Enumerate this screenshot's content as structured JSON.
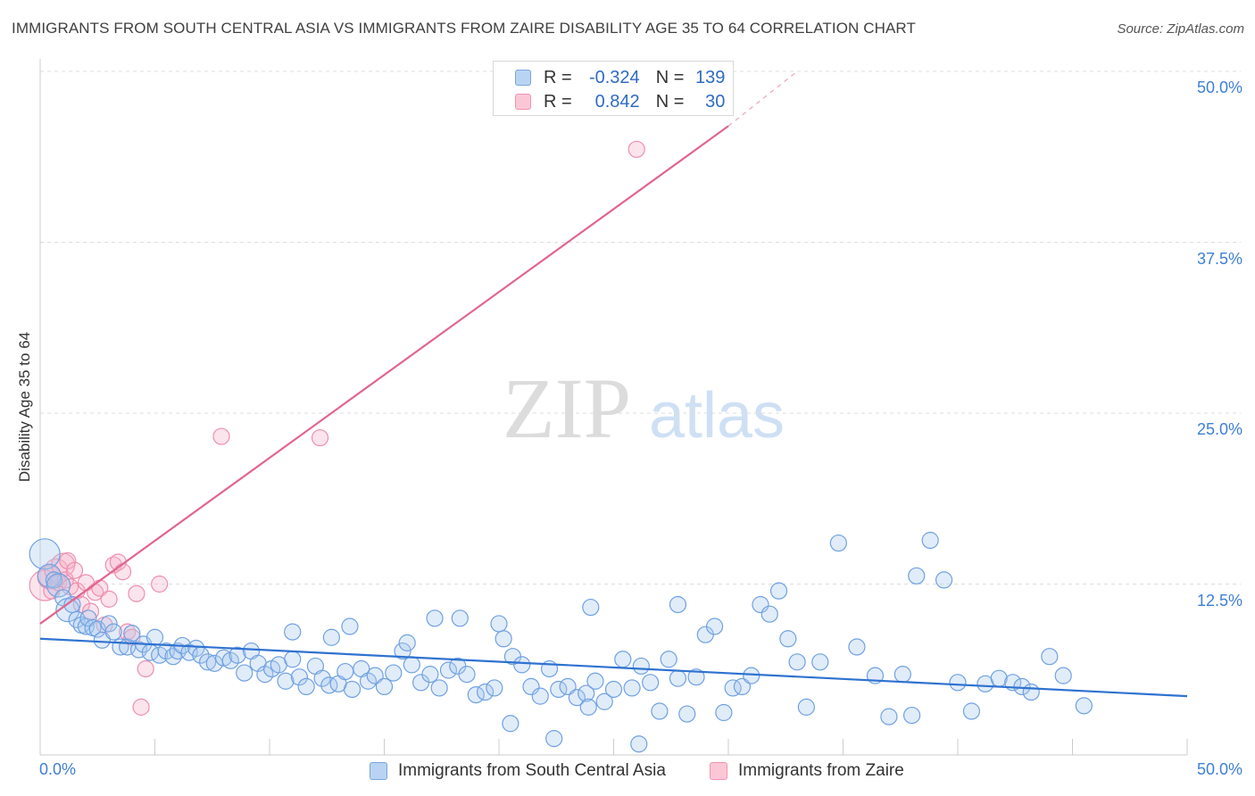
{
  "chart_data": {
    "type": "scatter",
    "title": "IMMIGRANTS FROM SOUTH CENTRAL ASIA VS IMMIGRANTS FROM ZAIRE DISABILITY AGE 35 TO 64 CORRELATION CHART",
    "source": "Source: ZipAtlas.com",
    "watermark": {
      "zip": "ZIP",
      "atlas": "atlas"
    },
    "ylabel": "Disability Age 35 to 64",
    "xlabel": "",
    "xlim": [
      0,
      50
    ],
    "ylim": [
      0,
      50
    ],
    "x_tick_labels": {
      "min": "0.0%",
      "max": "50.0%"
    },
    "y_ticks": [
      {
        "value": 50.0,
        "label": "50.0%"
      },
      {
        "value": 37.5,
        "label": "37.5%"
      },
      {
        "value": 25.0,
        "label": "25.0%"
      },
      {
        "value": 12.5,
        "label": "12.5%"
      }
    ],
    "grid": "horizontal dashed",
    "legend_placement": "top-center",
    "legend_labels": {
      "r_key": "R =",
      "n_key": "N ="
    },
    "series": [
      {
        "name": "Immigrants from South Central Asia",
        "color": "#6fa1e2",
        "line_color": "#2f72d0",
        "r": "-0.324",
        "n": "139",
        "trend": {
          "x0": 0.0,
          "y0": 8.5,
          "x1": 50.0,
          "y1": 4.3
        },
        "points": [
          [
            0.2,
            14.7
          ],
          [
            0.4,
            13.1
          ],
          [
            0.6,
            12.8
          ],
          [
            0.8,
            12.4
          ],
          [
            1.0,
            11.5
          ],
          [
            1.2,
            10.6
          ],
          [
            1.4,
            11.0
          ],
          [
            1.6,
            9.9
          ],
          [
            1.8,
            9.5
          ],
          [
            2.0,
            9.4
          ],
          [
            2.1,
            10.0
          ],
          [
            2.3,
            9.3
          ],
          [
            2.5,
            9.2
          ],
          [
            2.7,
            8.4
          ],
          [
            3.0,
            9.6
          ],
          [
            3.2,
            9.0
          ],
          [
            3.5,
            7.9
          ],
          [
            3.8,
            7.9
          ],
          [
            4.0,
            8.9
          ],
          [
            4.3,
            7.7
          ],
          [
            4.5,
            8.1
          ],
          [
            4.8,
            7.5
          ],
          [
            5.0,
            8.6
          ],
          [
            5.2,
            7.3
          ],
          [
            5.5,
            7.6
          ],
          [
            5.8,
            7.2
          ],
          [
            6.0,
            7.6
          ],
          [
            6.2,
            8.0
          ],
          [
            6.5,
            7.5
          ],
          [
            6.8,
            7.8
          ],
          [
            7.0,
            7.3
          ],
          [
            7.3,
            6.8
          ],
          [
            7.6,
            6.7
          ],
          [
            8.0,
            7.1
          ],
          [
            8.3,
            6.9
          ],
          [
            8.6,
            7.3
          ],
          [
            8.9,
            6.0
          ],
          [
            9.2,
            7.6
          ],
          [
            9.5,
            6.7
          ],
          [
            9.8,
            5.9
          ],
          [
            10.1,
            6.3
          ],
          [
            10.4,
            6.6
          ],
          [
            10.7,
            5.4
          ],
          [
            11.0,
            7.0
          ],
          [
            11.3,
            5.7
          ],
          [
            11.6,
            5.0
          ],
          [
            12.0,
            6.5
          ],
          [
            12.3,
            5.6
          ],
          [
            12.6,
            5.1
          ],
          [
            13.0,
            5.2
          ],
          [
            13.3,
            6.1
          ],
          [
            13.6,
            4.8
          ],
          [
            14.0,
            6.3
          ],
          [
            14.3,
            5.4
          ],
          [
            14.6,
            5.8
          ],
          [
            15.0,
            5.0
          ],
          [
            15.4,
            6.0
          ],
          [
            15.8,
            7.6
          ],
          [
            16.2,
            6.6
          ],
          [
            16.6,
            5.3
          ],
          [
            17.0,
            5.9
          ],
          [
            17.4,
            4.9
          ],
          [
            17.8,
            6.2
          ],
          [
            18.2,
            6.5
          ],
          [
            18.6,
            5.9
          ],
          [
            19.0,
            4.4
          ],
          [
            19.4,
            4.6
          ],
          [
            19.8,
            4.9
          ],
          [
            20.2,
            8.5
          ],
          [
            20.6,
            7.2
          ],
          [
            21.0,
            6.6
          ],
          [
            21.4,
            5.0
          ],
          [
            21.8,
            4.3
          ],
          [
            22.2,
            6.3
          ],
          [
            22.6,
            4.8
          ],
          [
            23.0,
            5.0
          ],
          [
            23.4,
            4.2
          ],
          [
            23.8,
            4.5
          ],
          [
            24.2,
            5.4
          ],
          [
            24.6,
            3.9
          ],
          [
            25.0,
            4.8
          ],
          [
            25.4,
            7.0
          ],
          [
            25.8,
            4.9
          ],
          [
            26.2,
            6.5
          ],
          [
            26.6,
            5.3
          ],
          [
            27.0,
            3.2
          ],
          [
            27.4,
            7.0
          ],
          [
            27.8,
            5.6
          ],
          [
            28.2,
            3.0
          ],
          [
            28.6,
            5.7
          ],
          [
            29.0,
            8.8
          ],
          [
            29.4,
            9.4
          ],
          [
            29.8,
            3.1
          ],
          [
            30.2,
            4.9
          ],
          [
            30.6,
            5.0
          ],
          [
            31.0,
            5.8
          ],
          [
            31.4,
            11.0
          ],
          [
            31.8,
            10.3
          ],
          [
            32.2,
            12.0
          ],
          [
            32.6,
            8.5
          ],
          [
            33.0,
            6.8
          ],
          [
            33.4,
            3.5
          ],
          [
            34.0,
            6.8
          ],
          [
            34.8,
            15.5
          ],
          [
            35.6,
            7.9
          ],
          [
            36.4,
            5.8
          ],
          [
            37.0,
            2.8
          ],
          [
            37.6,
            5.9
          ],
          [
            38.2,
            13.1
          ],
          [
            38.8,
            15.7
          ],
          [
            39.4,
            12.8
          ],
          [
            40.0,
            5.3
          ],
          [
            40.6,
            3.2
          ],
          [
            41.2,
            5.2
          ],
          [
            41.8,
            5.6
          ],
          [
            42.4,
            5.3
          ],
          [
            42.8,
            5.0
          ],
          [
            43.2,
            4.6
          ],
          [
            44.0,
            7.2
          ],
          [
            44.6,
            5.8
          ],
          [
            45.5,
            3.6
          ],
          [
            20.0,
            9.6
          ],
          [
            18.3,
            10.0
          ],
          [
            17.2,
            10.0
          ],
          [
            16.0,
            8.2
          ],
          [
            12.7,
            8.6
          ],
          [
            11.0,
            9.0
          ],
          [
            13.5,
            9.4
          ],
          [
            24.0,
            10.8
          ],
          [
            27.8,
            11.0
          ],
          [
            20.5,
            2.3
          ],
          [
            22.4,
            1.2
          ],
          [
            23.9,
            3.5
          ],
          [
            26.1,
            0.8
          ],
          [
            38.0,
            2.9
          ]
        ]
      },
      {
        "name": "Immigrants from Zaire",
        "color": "#f199b6",
        "line_color": "#e0668e",
        "r": "0.842",
        "n": "30",
        "trend": {
          "x0": 0.0,
          "y0": 9.6,
          "x1": 30.0,
          "y1": 46.0
        },
        "trend_ext": {
          "x0": 30.0,
          "y0": 46.0,
          "x1": 33.0,
          "y1": 50.0
        },
        "points": [
          [
            0.2,
            12.4
          ],
          [
            0.4,
            13.0
          ],
          [
            0.5,
            12.0
          ],
          [
            0.7,
            13.5
          ],
          [
            0.8,
            12.6
          ],
          [
            1.0,
            13.9
          ],
          [
            1.1,
            12.8
          ],
          [
            1.2,
            14.2
          ],
          [
            1.3,
            12.3
          ],
          [
            1.5,
            13.5
          ],
          [
            1.6,
            12.0
          ],
          [
            1.8,
            11.0
          ],
          [
            2.0,
            12.6
          ],
          [
            2.2,
            10.5
          ],
          [
            2.4,
            11.9
          ],
          [
            2.6,
            12.2
          ],
          [
            2.8,
            9.5
          ],
          [
            3.0,
            11.4
          ],
          [
            3.2,
            13.9
          ],
          [
            3.4,
            14.1
          ],
          [
            3.6,
            13.4
          ],
          [
            3.8,
            9.0
          ],
          [
            4.0,
            8.6
          ],
          [
            4.2,
            11.8
          ],
          [
            4.6,
            6.3
          ],
          [
            5.2,
            12.5
          ],
          [
            7.9,
            23.3
          ],
          [
            12.2,
            23.2
          ],
          [
            26.0,
            44.3
          ],
          [
            4.4,
            3.5
          ]
        ]
      }
    ]
  }
}
